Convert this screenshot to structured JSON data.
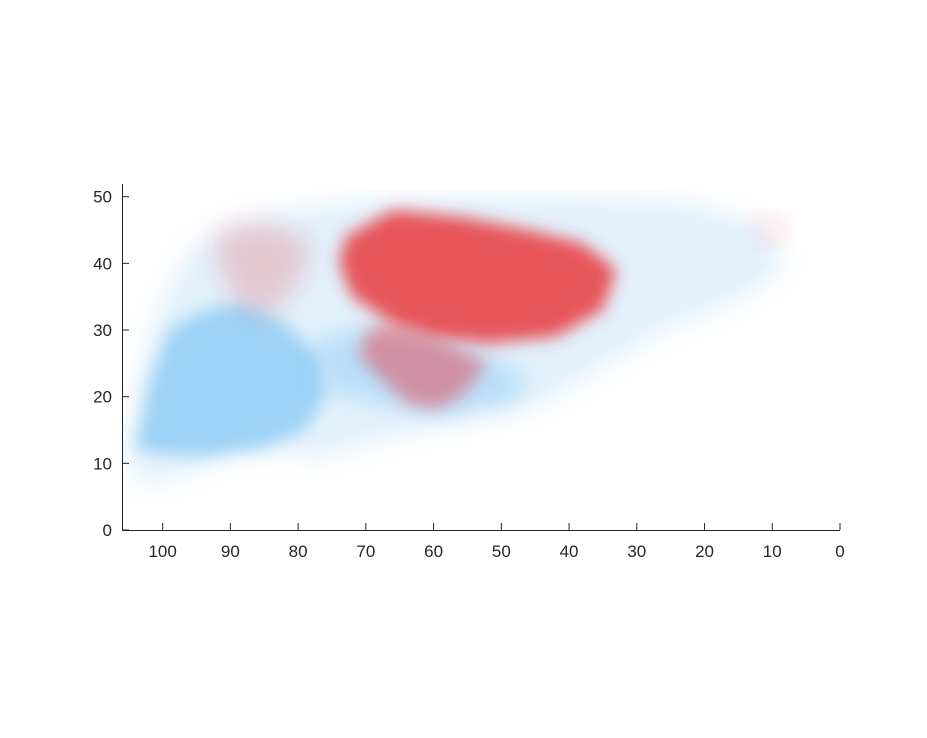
{
  "chart_data": {
    "type": "heatmap",
    "title": "",
    "xlabel": "",
    "ylabel": "",
    "xlim": [
      106,
      0
    ],
    "ylim": [
      0,
      51
    ],
    "x_reversed": true,
    "xticks": [
      100,
      90,
      80,
      70,
      60,
      50,
      40,
      30,
      20,
      10,
      0
    ],
    "yticks": [
      0,
      10,
      20,
      30,
      40,
      50
    ],
    "grid": false,
    "legend": "none",
    "colors": {
      "positive": "#e8383d",
      "negative": "#5ab4f0",
      "background": "#ffffff"
    },
    "regions": [
      {
        "kind": "negative",
        "label": "faint blue envelope",
        "intensity": 0.18,
        "outline": [
          [
            105,
            10
          ],
          [
            104,
            20
          ],
          [
            101,
            32
          ],
          [
            96,
            42
          ],
          [
            88,
            47
          ],
          [
            74,
            49
          ],
          [
            58,
            50
          ],
          [
            40,
            50
          ],
          [
            22,
            49
          ],
          [
            12,
            46
          ],
          [
            8,
            40
          ],
          [
            14,
            35
          ],
          [
            26,
            30
          ],
          [
            36,
            24
          ],
          [
            44,
            19
          ],
          [
            54,
            17
          ],
          [
            62,
            15
          ],
          [
            70,
            13
          ],
          [
            76,
            11
          ],
          [
            88,
            12
          ],
          [
            98,
            8
          ],
          [
            103,
            7
          ]
        ]
      },
      {
        "kind": "negative",
        "label": "blue lobe",
        "intensity": 0.5,
        "outline": [
          [
            104,
            12
          ],
          [
            102,
            22
          ],
          [
            99,
            30
          ],
          [
            94,
            33
          ],
          [
            88,
            34
          ],
          [
            82,
            31
          ],
          [
            77,
            26
          ],
          [
            76,
            20
          ],
          [
            79,
            15
          ],
          [
            86,
            12
          ],
          [
            95,
            11
          ]
        ]
      },
      {
        "kind": "negative",
        "label": "blue bridge",
        "intensity": 0.3,
        "outline": [
          [
            78,
            28
          ],
          [
            72,
            30
          ],
          [
            62,
            29
          ],
          [
            54,
            27
          ],
          [
            46,
            23
          ],
          [
            48,
            19
          ],
          [
            58,
            17
          ],
          [
            68,
            19
          ],
          [
            76,
            21
          ]
        ]
      },
      {
        "kind": "positive",
        "label": "upper-left faint red",
        "intensity": 0.22,
        "outline": [
          [
            92,
            45
          ],
          [
            84,
            46
          ],
          [
            78,
            43
          ],
          [
            80,
            37
          ],
          [
            84,
            32
          ],
          [
            89,
            34
          ],
          [
            92,
            40
          ]
        ]
      },
      {
        "kind": "positive",
        "label": "main red region",
        "intensity": 0.85,
        "outline": [
          [
            73,
            44
          ],
          [
            66,
            48
          ],
          [
            56,
            47
          ],
          [
            46,
            45
          ],
          [
            38,
            43
          ],
          [
            33,
            39
          ],
          [
            35,
            33
          ],
          [
            42,
            29
          ],
          [
            52,
            28
          ],
          [
            60,
            29
          ],
          [
            66,
            31
          ],
          [
            72,
            35
          ],
          [
            74,
            40
          ]
        ]
      },
      {
        "kind": "positive",
        "label": "dark red lower extension",
        "intensity": 0.45,
        "outline": [
          [
            70,
            30
          ],
          [
            66,
            31
          ],
          [
            58,
            28
          ],
          [
            52,
            25
          ],
          [
            56,
            20
          ],
          [
            60,
            18
          ],
          [
            64,
            19
          ],
          [
            68,
            23
          ],
          [
            71,
            26
          ]
        ]
      },
      {
        "kind": "positive",
        "label": "small red spot right",
        "intensity": 0.15,
        "outline": [
          [
            13,
            46
          ],
          [
            9,
            47
          ],
          [
            8,
            44
          ],
          [
            11,
            43
          ]
        ]
      }
    ]
  }
}
